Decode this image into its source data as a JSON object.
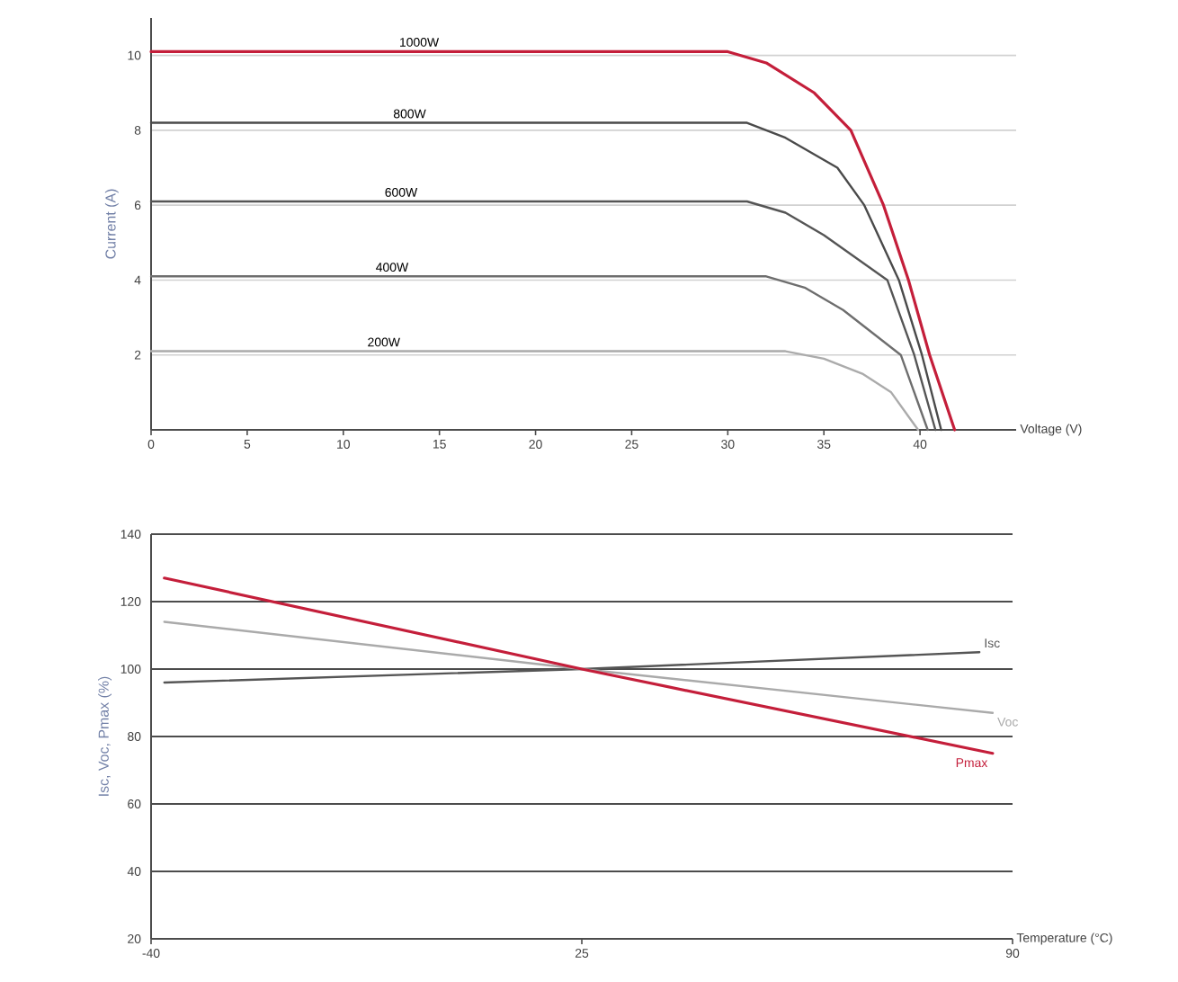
{
  "chart_data": [
    {
      "type": "line",
      "xlabel": "Voltage (V)",
      "ylabel": "Current (A)",
      "xlim": [
        0,
        45
      ],
      "ylim": [
        0,
        11
      ],
      "xticks": [
        0,
        5,
        10,
        15,
        20,
        25,
        30,
        35,
        40
      ],
      "yticks": [
        2,
        4,
        6,
        8,
        10
      ],
      "grid": "y",
      "series": [
        {
          "name": "1000W",
          "color": "#c41e3a",
          "x": [
            0,
            30,
            32,
            34.5,
            36.4,
            38.1,
            39.4,
            40.5,
            41.8
          ],
          "values": [
            10.1,
            10.1,
            9.8,
            9,
            8,
            6,
            4,
            2,
            0
          ]
        },
        {
          "name": "800W",
          "color": "#4a4a4a",
          "x": [
            0,
            31,
            33,
            35.7,
            37.1,
            38.9,
            40.1,
            41.1
          ],
          "values": [
            8.2,
            8.2,
            7.8,
            7,
            6,
            4,
            2,
            0
          ]
        },
        {
          "name": "600W",
          "color": "#555555",
          "x": [
            0,
            31,
            33,
            35,
            38.3,
            39.7,
            40.8
          ],
          "values": [
            6.1,
            6.1,
            5.8,
            5.2,
            4,
            2,
            0
          ]
        },
        {
          "name": "400W",
          "color": "#6e6e6e",
          "x": [
            0,
            32,
            34,
            36,
            37.5,
            39,
            40.4
          ],
          "values": [
            4.1,
            4.1,
            3.8,
            3.2,
            2.6,
            2,
            0
          ]
        },
        {
          "name": "200W",
          "color": "#ababab",
          "x": [
            0,
            33,
            35,
            37,
            38.5,
            39.9
          ],
          "values": [
            2.1,
            2.1,
            1.9,
            1.5,
            1,
            0
          ]
        }
      ]
    },
    {
      "type": "line",
      "xlabel": "Temperature (°C)",
      "ylabel": "Isc, Voc, Pmax (%)",
      "xlim": [
        -40,
        90
      ],
      "ylim": [
        20,
        140
      ],
      "xticks": [
        -40,
        25,
        90
      ],
      "yticks": [
        20,
        40,
        60,
        80,
        100,
        120,
        140
      ],
      "grid": "y",
      "series": [
        {
          "name": "Isc",
          "color": "#555555",
          "x": [
            -38,
            25,
            85
          ],
          "values": [
            96,
            100,
            105
          ]
        },
        {
          "name": "Voc",
          "color": "#aaaaaa",
          "x": [
            -38,
            25,
            87
          ],
          "values": [
            114,
            100,
            87
          ]
        },
        {
          "name": "Pmax",
          "color": "#c41e3a",
          "x": [
            -38,
            25,
            87
          ],
          "values": [
            127,
            100,
            75
          ]
        }
      ]
    }
  ]
}
